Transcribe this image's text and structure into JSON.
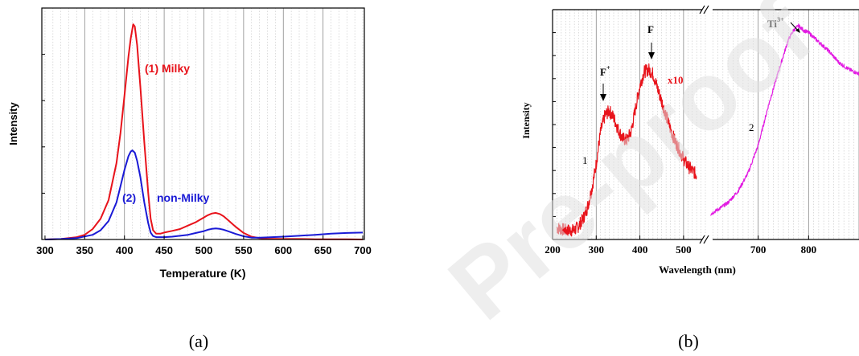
{
  "watermark": "Pre-proof",
  "chart_data": [
    {
      "type": "line",
      "panel_label": "(a)",
      "title": "",
      "xlabel": "Temperature (K)",
      "ylabel": "Intensity",
      "xlim": [
        296,
        702
      ],
      "ylim": [
        0,
        1
      ],
      "x_ticks": [
        "300",
        "350",
        "400",
        "450",
        "500",
        "550",
        "600",
        "650",
        "700"
      ],
      "grid": "vertical dotted every 10 K, solid every 50 K",
      "series": [
        {
          "name": "(1) Milky",
          "color": "#e8131b",
          "x": [
            300,
            320,
            340,
            350,
            360,
            370,
            380,
            390,
            395,
            400,
            405,
            408,
            411,
            413,
            416,
            420,
            425,
            430,
            433,
            436,
            440,
            445,
            450,
            460,
            470,
            480,
            490,
            500,
            505,
            510,
            515,
            520,
            525,
            530,
            540,
            550,
            560,
            570,
            580,
            600,
            620,
            640,
            660,
            680,
            700
          ],
          "y": [
            0.0,
            0.002,
            0.01,
            0.02,
            0.045,
            0.09,
            0.17,
            0.33,
            0.46,
            0.62,
            0.79,
            0.87,
            0.93,
            0.92,
            0.84,
            0.66,
            0.42,
            0.2,
            0.09,
            0.04,
            0.025,
            0.025,
            0.03,
            0.037,
            0.045,
            0.06,
            0.075,
            0.095,
            0.105,
            0.112,
            0.115,
            0.11,
            0.1,
            0.085,
            0.055,
            0.028,
            0.012,
            0.006,
            0.003,
            0.002,
            0.002,
            0.001,
            0.001,
            0.001,
            0.0
          ]
        },
        {
          "name": "(2) non-Milky",
          "color": "#1a1ad6",
          "x": [
            300,
            320,
            340,
            360,
            370,
            380,
            390,
            395,
            400,
            405,
            408,
            410,
            413,
            416,
            420,
            425,
            430,
            433,
            436,
            440,
            450,
            460,
            470,
            480,
            490,
            500,
            505,
            510,
            515,
            520,
            525,
            530,
            540,
            550,
            560,
            570,
            580,
            600,
            620,
            640,
            660,
            680,
            700
          ],
          "y": [
            0.0,
            0.002,
            0.006,
            0.02,
            0.04,
            0.08,
            0.16,
            0.23,
            0.3,
            0.36,
            0.38,
            0.385,
            0.375,
            0.34,
            0.27,
            0.16,
            0.07,
            0.03,
            0.015,
            0.01,
            0.01,
            0.012,
            0.016,
            0.02,
            0.028,
            0.036,
            0.042,
            0.046,
            0.048,
            0.046,
            0.042,
            0.036,
            0.024,
            0.014,
            0.008,
            0.008,
            0.009,
            0.012,
            0.016,
            0.02,
            0.025,
            0.028,
            0.03
          ]
        }
      ],
      "annotations": [
        "(1) Milky",
        "(2)",
        "non-Milky"
      ]
    },
    {
      "type": "line",
      "panel_label": "(b)",
      "title": "",
      "xlabel": "Wavelength (nm)",
      "ylabel": "Intensity",
      "axis_break": "between 550 and 600 nm (broken axis)",
      "xlim_left": [
        200,
        550
      ],
      "xlim_right": [
        600,
        900
      ],
      "ylim": [
        0,
        1
      ],
      "x_ticks": [
        "200",
        "300",
        "400",
        "500",
        "700",
        "800"
      ],
      "grid": "vertical dotted every 10 nm, solid every 100 nm",
      "series": [
        {
          "name": "1",
          "color": "#e8131b",
          "x": [
            210,
            230,
            250,
            260,
            270,
            280,
            290,
            300,
            310,
            320,
            330,
            340,
            350,
            360,
            370,
            380,
            390,
            400,
            410,
            420,
            425,
            430,
            440,
            450,
            460,
            470,
            480,
            490,
            500,
            510,
            520,
            530
          ],
          "y": [
            0.05,
            0.04,
            0.04,
            0.06,
            0.09,
            0.14,
            0.22,
            0.33,
            0.47,
            0.54,
            0.56,
            0.53,
            0.48,
            0.44,
            0.43,
            0.47,
            0.57,
            0.67,
            0.73,
            0.74,
            0.73,
            0.72,
            0.66,
            0.6,
            0.54,
            0.48,
            0.43,
            0.39,
            0.35,
            0.32,
            0.3,
            0.28
          ]
        },
        {
          "name": "2",
          "color": "#e21be2",
          "x": [
            605,
            620,
            640,
            660,
            680,
            700,
            720,
            740,
            760,
            770,
            780,
            790,
            800,
            820,
            840,
            860,
            880,
            900
          ],
          "y": [
            0.11,
            0.13,
            0.16,
            0.21,
            0.29,
            0.41,
            0.58,
            0.73,
            0.87,
            0.91,
            0.93,
            0.91,
            0.9,
            0.86,
            0.82,
            0.77,
            0.74,
            0.72
          ]
        }
      ],
      "annotations": [
        {
          "text": "F",
          "sup": "+"
        },
        {
          "text": "F",
          "sup": ""
        },
        {
          "text": "x10",
          "sup": ""
        },
        {
          "text": "Ti",
          "sup": "3+"
        },
        {
          "text": "1",
          "sup": ""
        },
        {
          "text": "2",
          "sup": ""
        }
      ]
    }
  ]
}
